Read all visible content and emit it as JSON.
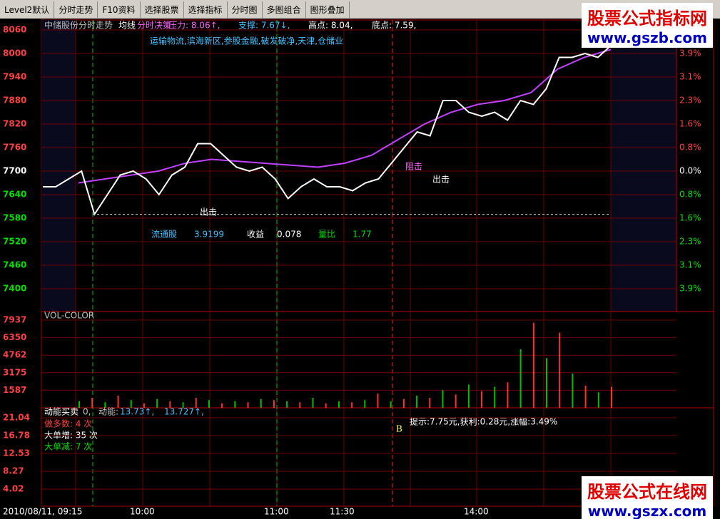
{
  "toolbar": [
    "Level2默认",
    "分时走势",
    "F10资料",
    "选择股票",
    "选择指标",
    "分时图",
    "多图组合",
    "图形叠加"
  ],
  "watermark_top": {
    "title": "股票公式指标网",
    "url": "www.gszb.com"
  },
  "watermark_bottom": {
    "title": "股票公式在线网",
    "url": "www.gszx.com"
  },
  "header": [
    "中储股份分时走势",
    "均线",
    "分时决策",
    "压力: 8.06↑,",
    "支撑: 7.67↓,",
    "高点: 8.04,",
    "底点: 7.59,"
  ],
  "concepts": "运输物流,滨海新区,参股金融,破发破净,天津,仓储业",
  "price_axis": [
    "8060",
    "8000",
    "7940",
    "7880",
    "7820",
    "7760",
    "7700",
    "7640",
    "7580",
    "7520",
    "7460",
    "7400"
  ],
  "pct_axis": [
    "3.9%",
    "3.1%",
    "2.3%",
    "1.6%",
    "0.8%",
    "0.0%",
    "0.8%",
    "1.6%",
    "2.3%",
    "3.1%",
    "3.9%"
  ],
  "price_line": [
    7660,
    7660,
    7680,
    7700,
    7590,
    7640,
    7690,
    7700,
    7680,
    7640,
    7690,
    7710,
    7770,
    7770,
    7740,
    7710,
    7700,
    7710,
    7680,
    7630,
    7660,
    7680,
    7660,
    7660,
    7650,
    7670,
    7680,
    7720,
    7760,
    7800,
    7790,
    7880,
    7880,
    7850,
    7840,
    7850,
    7830,
    7880,
    7870,
    7910,
    7990,
    7990,
    8000,
    7990,
    8020
  ],
  "avg_line": [
    7670,
    7680,
    7690,
    7700,
    7720,
    7730,
    7725,
    7720,
    7715,
    7710,
    7720,
    7740,
    7780,
    7820,
    7850,
    7870,
    7880,
    7900,
    7960,
    7990,
    8010
  ],
  "annotations": [
    "出击",
    "阻击",
    "出击"
  ],
  "stats": [
    "流通股",
    "3.9199",
    "收益",
    "0.078",
    "量比",
    "1.77"
  ],
  "volume": {
    "title": "VOL-COLOR",
    "ticks": [
      "7937",
      "6350",
      "4762",
      "3175",
      "1587"
    ],
    "values": [
      600,
      900,
      500,
      1100,
      700,
      400,
      800,
      600,
      500,
      900,
      700,
      400,
      600,
      500,
      800,
      700,
      600,
      500,
      900,
      400,
      600,
      500,
      700,
      1300,
      600,
      800,
      1100,
      900,
      1600,
      1200,
      2100,
      1500,
      1900,
      2300,
      5300,
      7700,
      4500,
      6800,
      3100,
      2000,
      1400,
      1900
    ],
    "colors": [
      "#00c000",
      "#ff3030"
    ]
  },
  "indicator": {
    "title": "动能买卖",
    "parts": [
      "0,",
      "动能:",
      "13.73↑,",
      "13.727↑,"
    ],
    "lines": [
      "做多数: 4 次",
      "大单增: 35 次",
      "大单减: 7 次"
    ],
    "marker": "B",
    "tip": "提示:7.75元,获利:0.28元,涨幅:3.49%",
    "ticks": [
      "21.04",
      "16.78",
      "12.53",
      "8.27",
      "4.02"
    ]
  },
  "time_axis": [
    "2010/08/11, 09:15",
    "10:00",
    "11:00",
    "11:30",
    "14:00"
  ]
}
